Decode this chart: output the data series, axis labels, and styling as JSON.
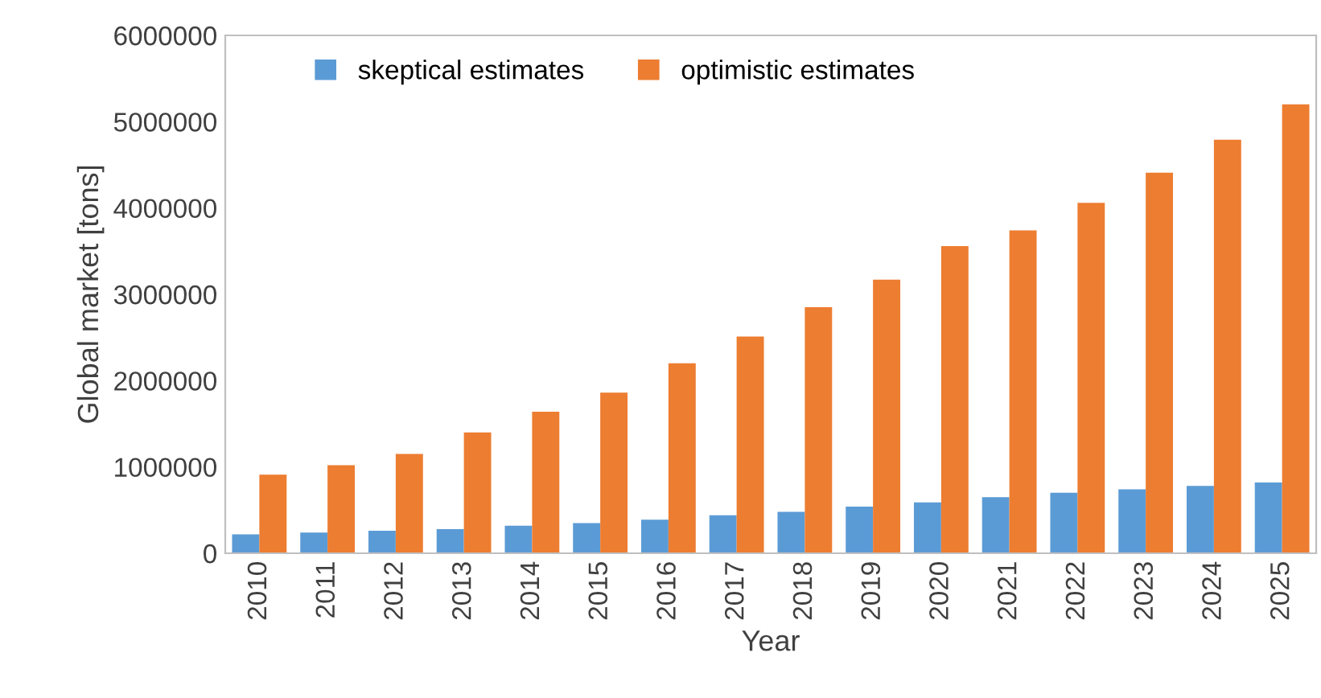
{
  "chart_data": {
    "type": "bar",
    "xlabel": "Year",
    "ylabel": "Global market [tons]",
    "categories": [
      "2010",
      "2011",
      "2012",
      "2013",
      "2014",
      "2015",
      "2016",
      "2017",
      "2018",
      "2019",
      "2020",
      "2021",
      "2022",
      "2023",
      "2024",
      "2025"
    ],
    "series": [
      {
        "name": "skeptical estimates",
        "color": "#5b9bd5",
        "values": [
          220000,
          240000,
          260000,
          280000,
          320000,
          350000,
          390000,
          440000,
          480000,
          540000,
          590000,
          650000,
          700000,
          740000,
          780000,
          820000
        ]
      },
      {
        "name": "optimistic estimates",
        "color": "#ed7d31",
        "values": [
          910000,
          1020000,
          1150000,
          1400000,
          1640000,
          1860000,
          2200000,
          2510000,
          2850000,
          3170000,
          3560000,
          3740000,
          4060000,
          4410000,
          4790000,
          5200000
        ]
      }
    ],
    "ylim": [
      0,
      6000000
    ],
    "yticks": [
      0,
      1000000,
      2000000,
      3000000,
      4000000,
      5000000,
      6000000
    ],
    "grid": false,
    "legend": "top left"
  }
}
